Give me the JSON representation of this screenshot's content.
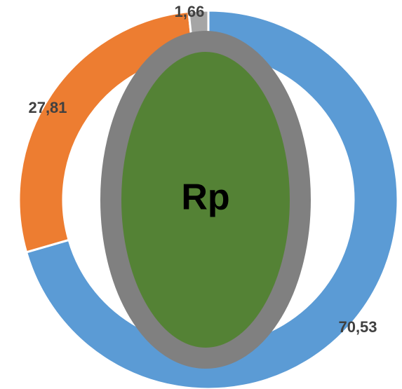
{
  "chart_data": {
    "type": "donut",
    "values": [
      70.53,
      27.81,
      1.66
    ],
    "value_labels": [
      "70,53",
      "27,81",
      "1,66"
    ],
    "colors": [
      "#5b9bd5",
      "#ed7d31",
      "#a5a5a5"
    ],
    "annotation": "Rp"
  }
}
